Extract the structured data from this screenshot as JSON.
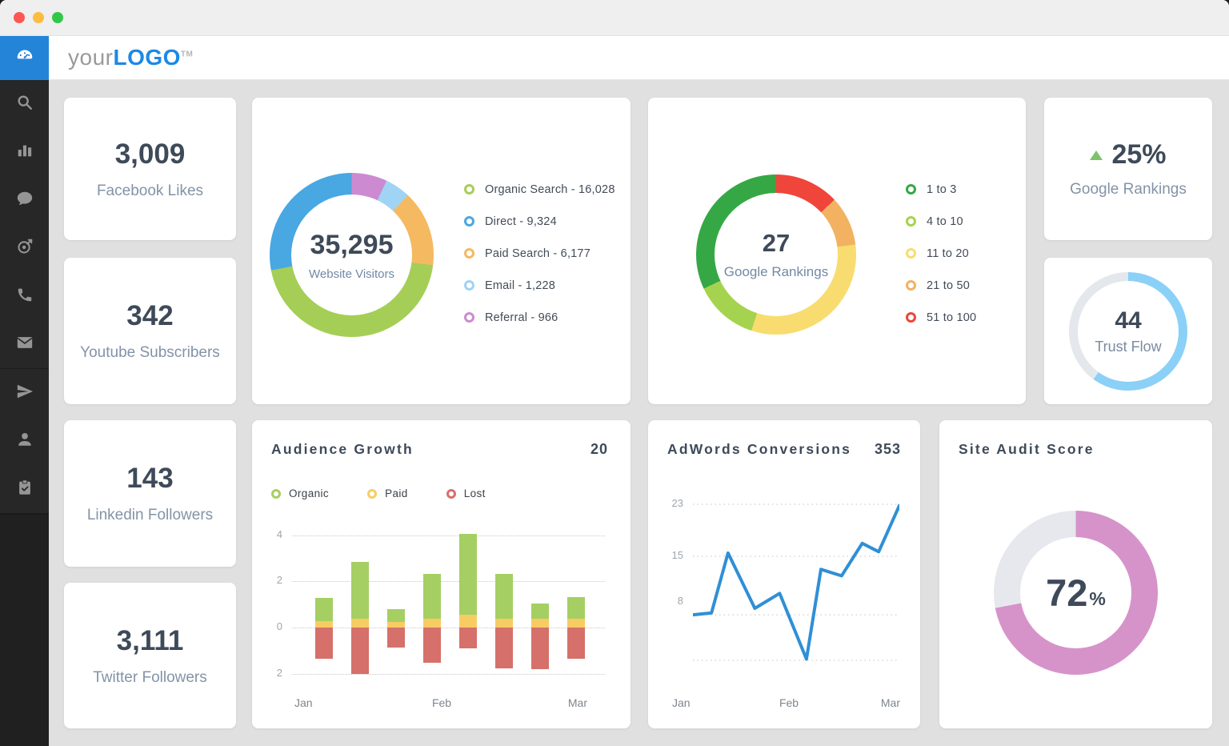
{
  "window": {
    "buttons": [
      "close",
      "minimize",
      "fullscreen"
    ]
  },
  "header": {
    "logo_prefix": "your",
    "logo_main": "LOGO",
    "logo_tm": "TM"
  },
  "sidebar": {
    "active_item": "dashboard",
    "items": [
      "dashboard-gauge",
      "search",
      "bar-chart",
      "chat",
      "target",
      "phone",
      "mail",
      "paper-plane",
      "user",
      "clipboard-check"
    ]
  },
  "colors": {
    "accent_blue": "#2484d8",
    "logo_blue": "#1e88e5",
    "background": "#e0e0e0",
    "sidebar": "#272727",
    "card": "#ffffff",
    "positive_green": "#7dc36b",
    "text_dark": "#3e4a59",
    "text_muted": "#8393a7"
  },
  "stats": [
    {
      "value": "3,009",
      "label": "Facebook Likes"
    },
    {
      "value": "342",
      "label": "Youtube Subscribers"
    },
    {
      "value": "143",
      "label": "Linkedin Followers"
    },
    {
      "value": "3,111",
      "label": "Twitter Followers"
    }
  ],
  "kpi": {
    "value": "25%",
    "label": "Google Rankings",
    "trend": "up"
  },
  "chart_data": [
    {
      "type": "pie",
      "name": "website_visitors",
      "center_value": "35,295",
      "center_label": "Website Visitors",
      "slices": [
        {
          "label": "Organic Search",
          "value": 16028,
          "legend": "Organic Search - 16,028",
          "color": "#a5ce56",
          "display_share": 45
        },
        {
          "label": "Direct",
          "value": 9324,
          "legend": "Direct - 9,324",
          "color": "#49a7e2",
          "display_share": 28
        },
        {
          "label": "Paid Search",
          "value": 6177,
          "legend": "Paid Search - 6,177",
          "color": "#f5b961",
          "display_share": 15
        },
        {
          "label": "Email",
          "value": 1228,
          "legend": "Email - 1,228",
          "color": "#9fd4f5",
          "display_share": 5
        },
        {
          "label": "Referral",
          "value": 966,
          "legend": "Referral - 966",
          "color": "#cc8bd1",
          "display_share": 7
        }
      ],
      "draw_order": [
        4,
        3,
        2,
        0,
        1
      ],
      "legend_position": "right"
    },
    {
      "type": "pie",
      "name": "google_rankings",
      "center_value": "27",
      "center_label": "Google Rankings",
      "slices": [
        {
          "label": "1 to 3",
          "color": "#35a845",
          "display_share": 32
        },
        {
          "label": "4 to 10",
          "color": "#a6d34f",
          "display_share": 13
        },
        {
          "label": "11 to 20",
          "color": "#f8dc6f",
          "display_share": 32
        },
        {
          "label": "21 to 50",
          "color": "#f2b261",
          "display_share": 10
        },
        {
          "label": "51 to 100",
          "color": "#ef453a",
          "display_share": 13
        }
      ],
      "draw_order": [
        4,
        3,
        2,
        1,
        0
      ],
      "legend_position": "right"
    },
    {
      "type": "progress-ring",
      "name": "trust_flow",
      "center_value": "44",
      "center_label": "Trust Flow",
      "percent": 60,
      "color": "#8bd0f7",
      "track_color": "#e4e7ec"
    },
    {
      "type": "bar",
      "name": "audience_growth",
      "title": "Audience Growth",
      "header_value": "20",
      "stacked": true,
      "series": [
        {
          "name": "Organic",
          "color": "#a5cf63",
          "values": [
            1.0,
            2.45,
            0.55,
            1.95,
            3.5,
            1.95,
            0.68,
            0.93
          ]
        },
        {
          "name": "Paid",
          "color": "#f7cd63",
          "values": [
            0.3,
            0.4,
            0.25,
            0.38,
            0.55,
            0.38,
            0.38,
            0.38
          ]
        },
        {
          "name": "Lost",
          "color": "#d6706a",
          "values": [
            -1.35,
            -2.0,
            -0.85,
            -1.5,
            -0.9,
            -1.75,
            -1.8,
            -1.35
          ]
        }
      ],
      "y_gridlines": [
        {
          "v": 4,
          "label": "4"
        },
        {
          "v": 2,
          "label": "2"
        },
        {
          "v": 0,
          "label": "0"
        },
        {
          "v": -2,
          "label": "2"
        }
      ],
      "x_labels": [
        "Jan",
        "Feb",
        "Mar"
      ],
      "ylim": [
        -2.1,
        4.3
      ],
      "grid": "dotted"
    },
    {
      "type": "line",
      "name": "adwords_conversions",
      "title": "AdWords Conversions",
      "header_value": "353",
      "points": [
        [
          0,
          6
        ],
        [
          9,
          6.3
        ],
        [
          17,
          15.5
        ],
        [
          30,
          7
        ],
        [
          42,
          9.3
        ],
        [
          55,
          -0.8
        ],
        [
          62,
          13
        ],
        [
          72,
          12
        ],
        [
          82,
          17
        ],
        [
          90,
          15.7
        ],
        [
          100,
          22.8
        ]
      ],
      "y_ticks": [
        {
          "v": 23,
          "label": "23"
        },
        {
          "v": 15,
          "label": "15"
        },
        {
          "v": 8,
          "label": "8"
        }
      ],
      "y_gridlines": [
        23,
        15,
        6,
        -1
      ],
      "x_labels": [
        "Jan",
        "Feb",
        "Mar"
      ],
      "color": "#2f8fd6",
      "grid": "dotted"
    },
    {
      "type": "progress-ring",
      "name": "site_audit_score",
      "title": "Site Audit Score",
      "center_value": "72",
      "center_unit": "%",
      "percent": 72,
      "color": "#d693c9",
      "track_color": "#e6e8ee"
    }
  ]
}
